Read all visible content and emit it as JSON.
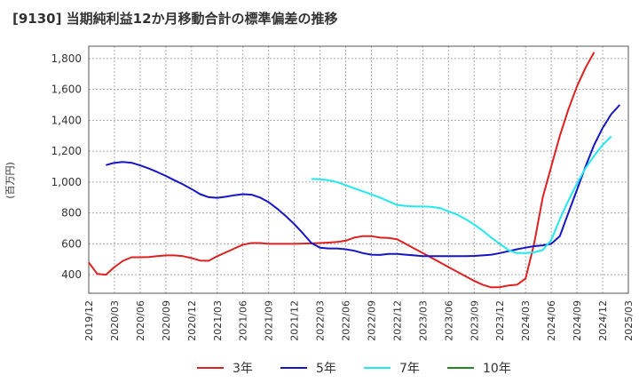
{
  "chart_data": {
    "type": "line",
    "title": "[9130]  当期純利益12か月移動合計の標準偏差の推移",
    "ylabel": "(百万円)",
    "xlabel": "",
    "ylim": [
      280,
      1880
    ],
    "yticks": [
      400,
      600,
      800,
      1000,
      1200,
      1400,
      1600,
      1800
    ],
    "ytick_labels": [
      "400",
      "600",
      "800",
      "1,000",
      "1,200",
      "1,400",
      "1,600",
      "1,800"
    ],
    "x_start": "2019-12",
    "x_end": "2025-03",
    "xtick_labels": [
      "2019/12",
      "2020/03",
      "2020/06",
      "2020/09",
      "2020/12",
      "2021/03",
      "2021/06",
      "2021/09",
      "2021/12",
      "2022/03",
      "2022/06",
      "2022/09",
      "2022/12",
      "2023/03",
      "2023/06",
      "2023/09",
      "2023/12",
      "2024/03",
      "2024/06",
      "2024/09",
      "2024/12",
      "2025/03"
    ],
    "grid": true,
    "legend_position": "bottom",
    "series": [
      {
        "name": "3年",
        "color": "#e02020",
        "start": "2019-12",
        "values": [
          480,
          405,
          400,
          450,
          490,
          513,
          513,
          515,
          520,
          525,
          525,
          520,
          508,
          492,
          490,
          520,
          545,
          570,
          595,
          605,
          605,
          600,
          600,
          600,
          600,
          602,
          603,
          605,
          608,
          612,
          620,
          640,
          650,
          650,
          640,
          638,
          630,
          600,
          570,
          540,
          510,
          480,
          450,
          420,
          390,
          360,
          335,
          318,
          320,
          330,
          335,
          375,
          600,
          900,
          1100,
          1300,
          1470,
          1620,
          1740,
          1840
        ]
      },
      {
        "name": "5年",
        "color": "#1515c8",
        "start": "2020-02",
        "values": [
          1110,
          1125,
          1130,
          1125,
          1108,
          1088,
          1065,
          1040,
          1012,
          985,
          955,
          922,
          902,
          898,
          905,
          915,
          922,
          918,
          900,
          870,
          828,
          780,
          728,
          668,
          605,
          575,
          570,
          570,
          565,
          555,
          540,
          530,
          528,
          535,
          535,
          530,
          525,
          520,
          520,
          520,
          520,
          520,
          520,
          522,
          525,
          530,
          540,
          552,
          565,
          575,
          585,
          590,
          600,
          650,
          800,
          950,
          1100,
          1240,
          1350,
          1440,
          1500
        ]
      },
      {
        "name": "7年",
        "color": "#22e8f0",
        "start": "2022-02",
        "values": [
          1020,
          1018,
          1012,
          1000,
          980,
          960,
          940,
          920,
          900,
          875,
          852,
          845,
          842,
          842,
          840,
          832,
          810,
          790,
          760,
          725,
          685,
          640,
          600,
          560,
          540,
          540,
          545,
          560,
          625,
          760,
          880,
          990,
          1090,
          1170,
          1240,
          1295
        ]
      },
      {
        "name": "10年",
        "color": "#228822",
        "start": "2024-01",
        "values": []
      }
    ]
  }
}
